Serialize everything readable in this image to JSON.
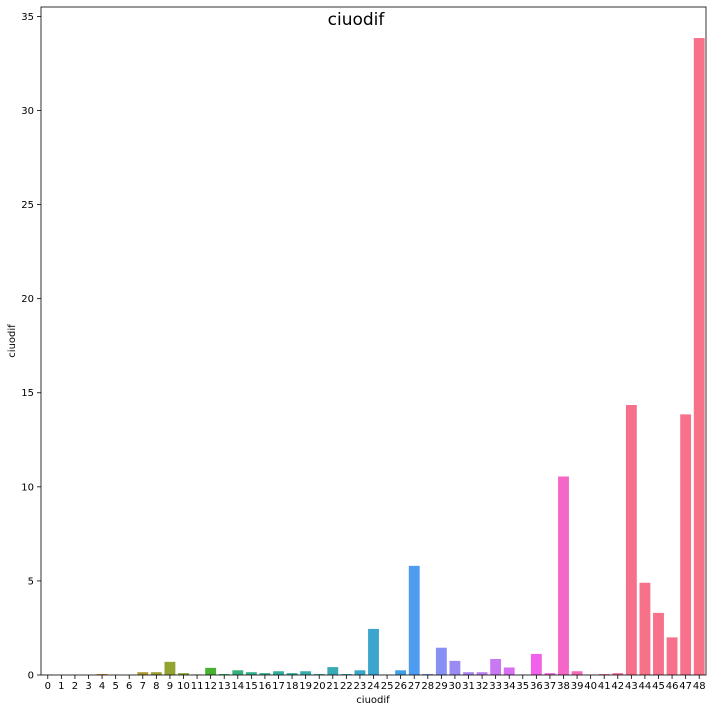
{
  "chart_data": {
    "type": "bar",
    "title": "ciuodif",
    "xlabel": "ciuodif",
    "ylabel": "ciuodif",
    "ylim": [
      0,
      35.5
    ],
    "yticks": [
      0,
      5,
      10,
      15,
      20,
      25,
      30,
      35
    ],
    "grid": false,
    "legend": "none",
    "categories": [
      "0",
      "1",
      "2",
      "3",
      "4",
      "5",
      "6",
      "7",
      "8",
      "9",
      "10",
      "11",
      "12",
      "13",
      "14",
      "15",
      "16",
      "17",
      "18",
      "19",
      "20",
      "21",
      "22",
      "23",
      "24",
      "25",
      "26",
      "27",
      "28",
      "29",
      "30",
      "31",
      "32",
      "33",
      "34",
      "35",
      "36",
      "37",
      "38",
      "39",
      "40",
      "41",
      "42",
      "43",
      "44",
      "45",
      "46",
      "47",
      "48"
    ],
    "values": [
      0.02,
      0.01,
      0.01,
      0.01,
      0.05,
      0.01,
      0.01,
      0.15,
      0.15,
      0.7,
      0.1,
      0.03,
      0.38,
      0.05,
      0.25,
      0.15,
      0.1,
      0.2,
      0.1,
      0.2,
      0.05,
      0.42,
      0.05,
      0.25,
      2.45,
      0.02,
      0.25,
      5.8,
      0.05,
      1.45,
      0.75,
      0.15,
      0.15,
      0.85,
      0.4,
      0.02,
      1.12,
      0.1,
      10.55,
      0.2,
      0.02,
      0.05,
      0.1,
      14.35,
      4.9,
      3.3,
      2.0,
      13.85,
      33.85
    ],
    "colors": [
      "#f77189",
      "#f7754f",
      "#f47d42",
      "#e68333",
      "#d68a31",
      "#c89031",
      "#bb9531",
      "#ae9a31",
      "#a09f31",
      "#92a331",
      "#81a831",
      "#6aac31",
      "#48b131",
      "#32b259",
      "#33b17b",
      "#33b08a",
      "#34af94",
      "#34ae9c",
      "#35ada3",
      "#35acaa",
      "#36abb0",
      "#37aab6",
      "#38a9bd",
      "#39a7c5",
      "#3ba5cd",
      "#3da3d7",
      "#41a0e4",
      "#4d9cf0",
      "#6e95f4",
      "#8790f4",
      "#9a8bf4",
      "#aa86f4",
      "#ba80f4",
      "#c978f4",
      "#d86ff3",
      "#e666f2",
      "#f161ea",
      "#f564d9",
      "#f566c9",
      "#f569bb",
      "#f66bae",
      "#f66da1",
      "#f66f96",
      "#f7708b",
      "#f77189",
      "#f7718a",
      "#f7718b",
      "#f7718c",
      "#f77189"
    ]
  }
}
